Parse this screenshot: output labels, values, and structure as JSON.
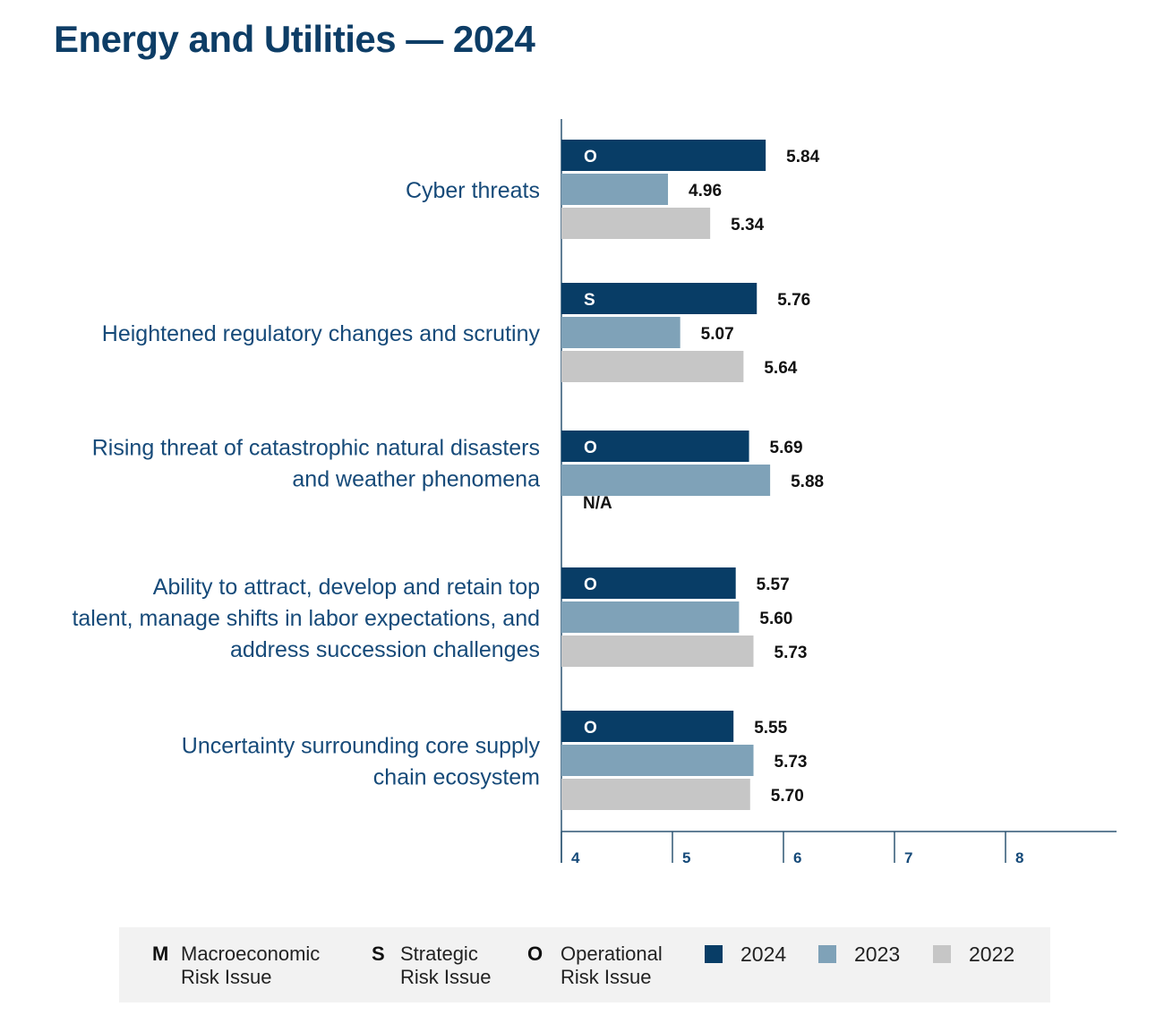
{
  "title": "Energy and Utilities — 2024",
  "colors": {
    "y2024": "#083d66",
    "y2023": "#7fa2b8",
    "y2022": "#c6c6c6",
    "axis": "#2d5573"
  },
  "chart_data": {
    "type": "bar",
    "orientation": "horizontal",
    "title": "Energy and Utilities — 2024",
    "categories": [
      {
        "lines": [
          "Cyber threats"
        ],
        "badge": "O"
      },
      {
        "lines": [
          "Heightened regulatory changes and scrutiny"
        ],
        "badge": "S"
      },
      {
        "lines": [
          "Rising threat of catastrophic natural disasters",
          "and weather phenomena"
        ],
        "badge": "O"
      },
      {
        "lines": [
          "Ability to attract, develop and retain top",
          "talent, manage shifts in labor expectations, and",
          "address succession challenges"
        ],
        "badge": "O"
      },
      {
        "lines": [
          "Uncertainty surrounding core supply",
          "chain ecosystem"
        ],
        "badge": "O"
      }
    ],
    "series": [
      {
        "name": "2024",
        "values": [
          5.84,
          5.76,
          5.69,
          5.57,
          5.55
        ],
        "labels": [
          "5.84",
          "5.76",
          "5.69",
          "5.57",
          "5.55"
        ]
      },
      {
        "name": "2023",
        "values": [
          4.96,
          5.07,
          5.88,
          5.6,
          5.73
        ],
        "labels": [
          "4.96",
          "5.07",
          "5.88",
          "5.60",
          "5.73"
        ]
      },
      {
        "name": "2022",
        "values": [
          5.34,
          5.64,
          null,
          5.73,
          5.7
        ],
        "labels": [
          "5.34",
          "5.64",
          "N/A",
          "5.73",
          "5.70"
        ]
      }
    ],
    "xlim": [
      4,
      9
    ],
    "xticks": [
      "4",
      "5",
      "6",
      "7",
      "8"
    ],
    "grid": false,
    "legend_position": "bottom"
  },
  "legend": {
    "risk_types": [
      {
        "code": "M",
        "line1": "Macroeconomic",
        "line2": "Risk Issue"
      },
      {
        "code": "S",
        "line1": "Strategic",
        "line2": "Risk Issue"
      },
      {
        "code": "O",
        "line1": "Operational",
        "line2": "Risk Issue"
      }
    ],
    "years": [
      "2024",
      "2023",
      "2022"
    ]
  }
}
